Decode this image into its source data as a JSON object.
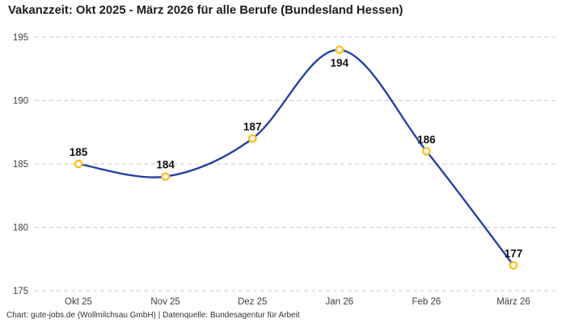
{
  "header": {
    "title": "Vakanzzeit: Okt 2025 - März 2026 für alle Berufe (Bundesland Hessen)"
  },
  "footer": {
    "caption": "Chart: gute-jobs.de (Wollmilchsau GmbH) | Datenquelle: Bundesagentur für Arbeit"
  },
  "chart_data": {
    "type": "line",
    "title": "Vakanzzeit: Okt 2025 - März 2026 für alle Berufe (Bundesland Hessen)",
    "categories": [
      "Okt 25",
      "Nov 25",
      "Dez 25",
      "Jan 26",
      "Feb 26",
      "März 26"
    ],
    "series": [
      {
        "name": "Vakanzzeit",
        "values": [
          185,
          184,
          187,
          194,
          186,
          177
        ]
      }
    ],
    "data_labels": [
      "185",
      "184",
      "187",
      "194",
      "186",
      "177"
    ],
    "label_position": [
      "above",
      "above",
      "above",
      "below",
      "above",
      "above"
    ],
    "xlabel": "",
    "ylabel": "",
    "ylim": [
      175,
      195
    ],
    "yticks": [
      175,
      180,
      185,
      190,
      195
    ],
    "grid": "horizontal-dashed",
    "legend": "none",
    "curve": "smooth",
    "colors": {
      "line": "#2443a3",
      "marker_stroke": "#fbbf24",
      "marker_fill": "#ffffff",
      "grid": "#c9c9c9",
      "title_text": "#1d1d1b",
      "tick_text": "#3f3f3f",
      "label_text": "#111111",
      "background": "#ffffff"
    }
  }
}
